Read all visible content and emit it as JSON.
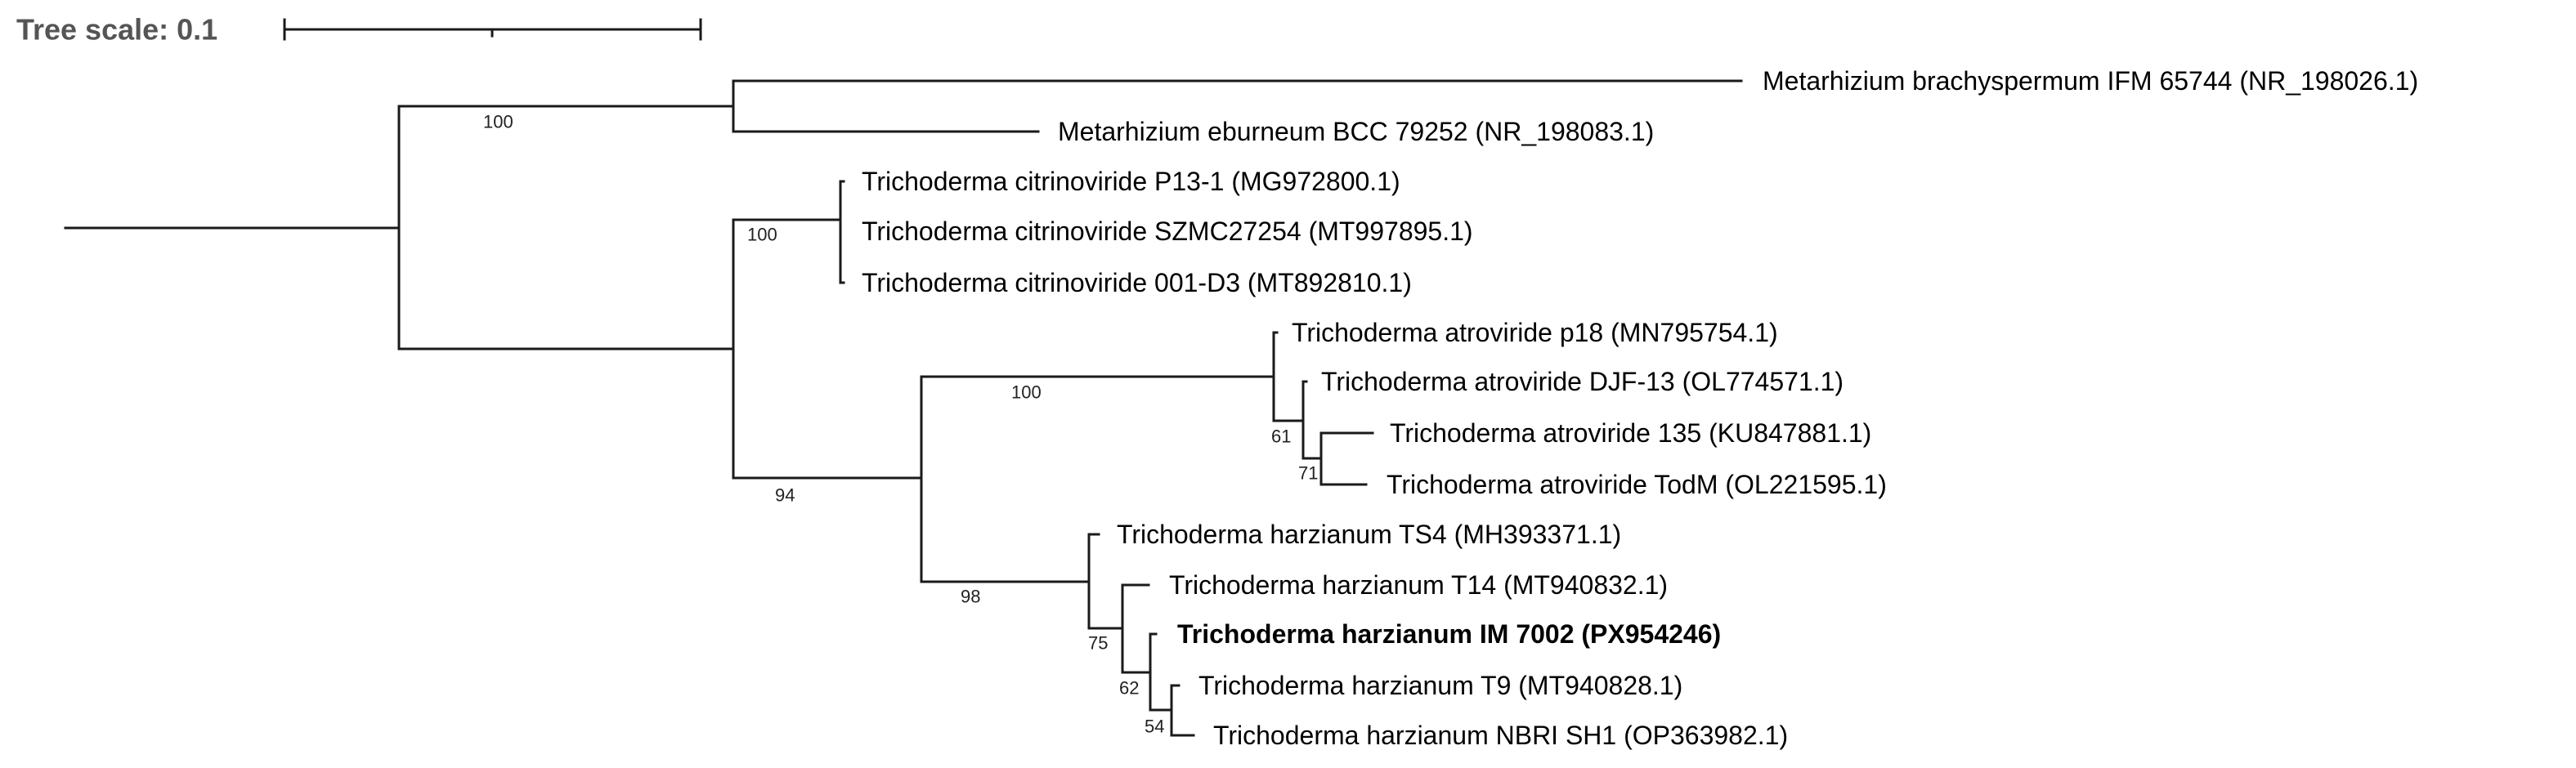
{
  "tree_scale": {
    "label": "Tree scale: 0.1"
  },
  "leaves": [
    {
      "label": "Metarhizium brachyspermum IFM 65744 (NR_198026.1)"
    },
    {
      "label": "Metarhizium eburneum BCC 79252 (NR_198083.1)"
    },
    {
      "label": "Trichoderma citrinoviride P13-1 (MG972800.1)"
    },
    {
      "label": "Trichoderma citrinoviride SZMC27254 (MT997895.1)"
    },
    {
      "label": "Trichoderma citrinoviride 001-D3 (MT892810.1)"
    },
    {
      "label": "Trichoderma atroviride p18 (MN795754.1)"
    },
    {
      "label": "Trichoderma atroviride DJF-13 (OL774571.1)"
    },
    {
      "label": "Trichoderma atroviride 135 (KU847881.1)"
    },
    {
      "label": "Trichoderma atroviride TodM (OL221595.1)"
    },
    {
      "label": "Trichoderma harzianum TS4 (MH393371.1)"
    },
    {
      "label": "Trichoderma harzianum T14 (MT940832.1)"
    },
    {
      "label": "Trichoderma harzianum IM 7002 (PX954246)",
      "highlighted": true
    },
    {
      "label": "Trichoderma harzianum T9 (MT940828.1)"
    },
    {
      "label": "Trichoderma harzianum NBRI SH1 (OP363982.1)"
    }
  ],
  "bootstrap": [
    {
      "clade": "Metarhizium",
      "value": "100"
    },
    {
      "clade": "T. citrinoviride",
      "value": "100"
    },
    {
      "clade": "atroviride + harzianum",
      "value": "94"
    },
    {
      "clade": "T. atroviride",
      "value": "100"
    },
    {
      "clade": "atroviride DJF-13/135/TodM",
      "value": "61"
    },
    {
      "clade": "atroviride 135/TodM",
      "value": "71"
    },
    {
      "clade": "T. harzianum",
      "value": "98"
    },
    {
      "clade": "harzianum T14/IM7002/T9/NBRI",
      "value": "75"
    },
    {
      "clade": "harzianum IM7002/T9/NBRI",
      "value": "62"
    },
    {
      "clade": "harzianum T9/NBRI",
      "value": "54"
    }
  ]
}
